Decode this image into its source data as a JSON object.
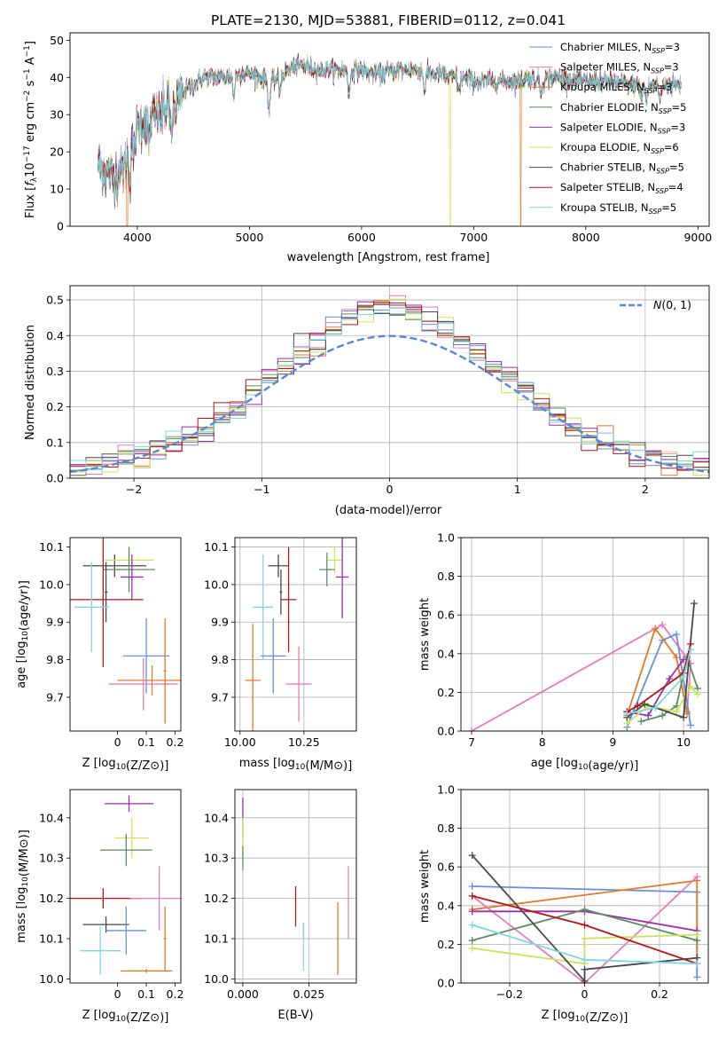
{
  "title": "PLATE=2130, MJD=53881, FIBERID=0112, z=0.041",
  "colors": {
    "Chabrier MILES": "#6a8fdb",
    "Salpeter MILES": "#e87dbb",
    "Kroupa MILES": "#e07b28",
    "Chabrier ELODIE": "#5e8c63",
    "Salpeter ELODIE": "#9b2fae",
    "Kroupa ELODIE": "#c8e65a",
    "Chabrier STELIB": "#4a4a4a",
    "Salpeter STELIB": "#b01818",
    "Kroupa STELIB": "#7fd8e0",
    "gauss": "#5b86d9"
  },
  "legend_models": [
    {
      "key": "Chabrier MILES",
      "imf": "Chabrier MILES, N",
      "n": "3"
    },
    {
      "key": "Salpeter MILES",
      "imf": "Salpeter MILES, N",
      "n": "3"
    },
    {
      "key": "Kroupa MILES",
      "imf": "Kroupa MILES, N",
      "n": "3"
    },
    {
      "key": "Chabrier ELODIE",
      "imf": "Chabrier ELODIE, N",
      "n": "5"
    },
    {
      "key": "Salpeter ELODIE",
      "imf": "Salpeter ELODIE, N",
      "n": "3"
    },
    {
      "key": "Kroupa ELODIE",
      "imf": "Kroupa ELODIE, N",
      "n": "6"
    },
    {
      "key": "Chabrier STELIB",
      "imf": "Chabrier STELIB, N",
      "n": "5"
    },
    {
      "key": "Salpeter STELIB",
      "imf": "Salpeter STELIB, N",
      "n": "4"
    },
    {
      "key": "Kroupa STELIB",
      "imf": "Kroupa STELIB, N",
      "n": "5"
    }
  ],
  "legend_ssp_subscript": "SSP",
  "chart_data": [
    {
      "id": "spectrum",
      "type": "line",
      "xlabel": "wavelength [Angstrom, rest frame]",
      "ylabel": "Flux [f_λ 10^-17 erg cm^-2 s^-1 A^-1]",
      "xlim": [
        3400,
        9100
      ],
      "ylim": [
        0,
        52
      ],
      "xticks": [
        4000,
        5000,
        6000,
        7000,
        8000,
        9000
      ],
      "yticks": [
        0,
        10,
        20,
        30,
        40,
        50
      ],
      "grid": false,
      "legend": "top-right",
      "continuum": [
        [
          3650,
          17
        ],
        [
          3700,
          15
        ],
        [
          3800,
          13
        ],
        [
          3900,
          17
        ],
        [
          3950,
          24
        ],
        [
          4000,
          27
        ],
        [
          4100,
          29
        ],
        [
          4200,
          30
        ],
        [
          4300,
          33
        ],
        [
          4400,
          36
        ],
        [
          4500,
          38
        ],
        [
          4600,
          40
        ],
        [
          4700,
          40
        ],
        [
          4800,
          40
        ],
        [
          4900,
          41
        ],
        [
          5000,
          41
        ],
        [
          5100,
          40
        ],
        [
          5200,
          39
        ],
        [
          5300,
          41
        ],
        [
          5400,
          43
        ],
        [
          5500,
          43
        ],
        [
          5600,
          42
        ],
        [
          5700,
          42
        ],
        [
          5800,
          42
        ],
        [
          5900,
          42
        ],
        [
          6000,
          42
        ],
        [
          6100,
          41
        ],
        [
          6200,
          41
        ],
        [
          6300,
          42
        ],
        [
          6400,
          42
        ],
        [
          6500,
          42
        ],
        [
          6600,
          41
        ],
        [
          6700,
          41
        ],
        [
          6800,
          40
        ],
        [
          6900,
          40
        ],
        [
          7000,
          39
        ],
        [
          7100,
          39
        ],
        [
          7200,
          39
        ],
        [
          7300,
          39
        ],
        [
          7400,
          39
        ],
        [
          7500,
          40
        ],
        [
          7600,
          39
        ],
        [
          7700,
          40
        ],
        [
          7800,
          40
        ],
        [
          7900,
          39
        ],
        [
          8000,
          39
        ],
        [
          8200,
          39
        ],
        [
          8400,
          38
        ],
        [
          8600,
          38
        ],
        [
          8800,
          38
        ]
      ],
      "absorption_features": [
        [
          3934,
          8
        ],
        [
          3969,
          6
        ],
        [
          4102,
          6
        ],
        [
          4304,
          8
        ],
        [
          4341,
          5
        ],
        [
          4861,
          6
        ],
        [
          5175,
          8
        ],
        [
          5270,
          4
        ],
        [
          5890,
          7
        ],
        [
          6563,
          5
        ],
        [
          6870,
          4
        ],
        [
          7600,
          3
        ],
        [
          8498,
          4
        ],
        [
          8542,
          5
        ],
        [
          8662,
          4
        ]
      ],
      "dropouts": [
        {
          "model": "Kroupa MILES",
          "x": 3910
        },
        {
          "model": "Kroupa ELODIE",
          "x": 6790
        },
        {
          "model": "Kroupa MILES",
          "x": 7420
        }
      ],
      "series": [
        "Chabrier MILES",
        "Salpeter MILES",
        "Kroupa MILES",
        "Chabrier ELODIE",
        "Salpeter ELODIE",
        "Kroupa ELODIE",
        "Chabrier STELIB",
        "Salpeter STELIB",
        "Kroupa STELIB"
      ]
    },
    {
      "id": "residuals",
      "type": "bar",
      "xlabel": "(data-model)/error",
      "ylabel": "Normed distribution",
      "xlim": [
        -2.5,
        2.5
      ],
      "ylim": [
        0,
        0.54
      ],
      "xticks": [
        -2,
        -1,
        0,
        1,
        2
      ],
      "yticks": [
        0.0,
        0.1,
        0.2,
        0.3,
        0.4,
        0.5
      ],
      "grid": true,
      "legend": "top-right",
      "gauss_label": "N(0,1)",
      "bins": 40,
      "series": [
        "Chabrier MILES",
        "Salpeter MILES",
        "Kroupa MILES",
        "Chabrier ELODIE",
        "Salpeter ELODIE",
        "Kroupa ELODIE",
        "Chabrier STELIB",
        "Salpeter STELIB",
        "Kroupa STELIB"
      ]
    },
    {
      "id": "age_vs_Z",
      "type": "scatter",
      "xlabel": "Z [log10(Z/Z⊙)]",
      "ylabel": "age [log10(age/yr)]",
      "xlim": [
        -0.165,
        0.22
      ],
      "ylim": [
        9.61,
        10.125
      ],
      "xticks": [
        0.0,
        0.1,
        0.2
      ],
      "yticks": [
        9.7,
        9.8,
        9.9,
        10.0,
        10.1
      ],
      "grid": false,
      "points": [
        {
          "model": "Chabrier STELIB",
          "x": -0.01,
          "y": 10.05,
          "xerr": 0.11,
          "yerr": 0.03
        },
        {
          "model": "Kroupa ELODIE",
          "x": 0.04,
          "y": 10.065,
          "xerr": 0.085,
          "yerr": 0.03
        },
        {
          "model": "Chabrier ELODIE",
          "x": 0.04,
          "y": 10.04,
          "xerr": 0.09,
          "yerr": 0.06
        },
        {
          "model": "Salpeter ELODIE",
          "x": 0.05,
          "y": 10.02,
          "xerr": 0.04,
          "yerr": 0.06
        },
        {
          "model": "Salpeter STELIB",
          "x": -0.05,
          "y": 9.96,
          "xerr": 0.14,
          "yerr": 0.18
        },
        {
          "model": "Chabrier STELIB",
          "x": -0.04,
          "y": 9.98,
          "xerr": 0.005,
          "yerr": 0.08
        },
        {
          "model": "Kroupa STELIB",
          "x": -0.09,
          "y": 9.94,
          "xerr": 0.06,
          "yerr": 0.12
        },
        {
          "model": "Chabrier MILES",
          "x": 0.1,
          "y": 9.81,
          "xerr": 0.08,
          "yerr": 0.1
        },
        {
          "model": "Kroupa MILES",
          "x": 0.12,
          "y": 9.745,
          "xerr": 0.12,
          "yerr": 0.04
        },
        {
          "model": "Salpeter MILES",
          "x": 0.09,
          "y": 9.735,
          "xerr": 0.12,
          "yerr": 0.07
        },
        {
          "model": "Kroupa MILES",
          "x": 0.165,
          "y": 9.77,
          "xerr": 0.005,
          "yerr": 0.14
        }
      ]
    },
    {
      "id": "age_vs_mass",
      "type": "scatter",
      "xlabel": "mass [log10(M/M⊙)]",
      "ylabel": "",
      "xlim": [
        9.98,
        10.455
      ],
      "ylim": [
        9.61,
        10.125
      ],
      "xticks": [
        10.0,
        10.25
      ],
      "xticklabels": [
        "10.00",
        "10.25"
      ],
      "yticks": [
        9.7,
        9.8,
        9.9,
        10.0,
        10.1
      ],
      "grid": true,
      "points": [
        {
          "model": "Chabrier STELIB",
          "x": 10.15,
          "y": 10.05,
          "xerr": 0.04,
          "yerr": 0.03
        },
        {
          "model": "Kroupa ELODIE",
          "x": 10.37,
          "y": 10.065,
          "xerr": 0.03,
          "yerr": 0.035
        },
        {
          "model": "Chabrier ELODIE",
          "x": 10.34,
          "y": 10.04,
          "xerr": 0.03,
          "yerr": 0.045
        },
        {
          "model": "Salpeter ELODIE",
          "x": 10.4,
          "y": 10.02,
          "xerr": 0.025,
          "yerr": 0.11
        },
        {
          "model": "Salpeter STELIB",
          "x": 10.19,
          "y": 9.96,
          "xerr": 0.03,
          "yerr": 0.14
        },
        {
          "model": "Chabrier STELIB",
          "x": 10.16,
          "y": 9.98,
          "xerr": 0.005,
          "yerr": 0.06
        },
        {
          "model": "Kroupa STELIB",
          "x": 10.09,
          "y": 9.94,
          "xerr": 0.04,
          "yerr": 0.14
        },
        {
          "model": "Chabrier MILES",
          "x": 10.13,
          "y": 9.81,
          "xerr": 0.05,
          "yerr": 0.1
        },
        {
          "model": "Kroupa MILES",
          "x": 10.05,
          "y": 9.745,
          "xerr": 0.03,
          "yerr": 0.15
        },
        {
          "model": "Salpeter MILES",
          "x": 10.23,
          "y": 9.735,
          "xerr": 0.05,
          "yerr": 0.1
        }
      ]
    },
    {
      "id": "weight_vs_age",
      "type": "line",
      "xlabel": "age [log10(age/yr)]",
      "ylabel": "mass weight",
      "xlim": [
        6.85,
        10.35
      ],
      "ylim": [
        0,
        1.0
      ],
      "xticks": [
        7,
        8,
        9,
        10
      ],
      "yticks": [
        0.0,
        0.2,
        0.4,
        0.6,
        0.8,
        1.0
      ],
      "grid": true,
      "series": [
        {
          "model": "Salpeter MILES",
          "x": [
            7.0,
            9.7,
            10.1,
            10.05
          ],
          "y": [
            0.0,
            0.55,
            0.35,
            0.1
          ]
        },
        {
          "model": "Chabrier MILES",
          "x": [
            9.2,
            9.7,
            9.9,
            10.1
          ],
          "y": [
            0.02,
            0.47,
            0.5,
            0.03
          ]
        },
        {
          "model": "Kroupa MILES",
          "x": [
            9.2,
            9.6,
            9.9,
            10.05
          ],
          "y": [
            0.08,
            0.53,
            0.38,
            0.09
          ]
        },
        {
          "model": "Chabrier ELODIE",
          "x": [
            9.4,
            9.7,
            9.9,
            10.05,
            10.2
          ],
          "y": [
            0.05,
            0.08,
            0.13,
            0.38,
            0.22
          ]
        },
        {
          "model": "Salpeter ELODIE",
          "x": [
            9.2,
            9.5,
            9.8,
            10.0
          ],
          "y": [
            0.1,
            0.08,
            0.27,
            0.37
          ]
        },
        {
          "model": "Kroupa ELODIE",
          "x": [
            9.2,
            9.5,
            9.9,
            10.1,
            10.2
          ],
          "y": [
            0.04,
            0.13,
            0.1,
            0.23,
            0.19
          ]
        },
        {
          "model": "Chabrier STELIB",
          "x": [
            9.2,
            9.45,
            10.0,
            10.15
          ],
          "y": [
            0.07,
            0.14,
            0.07,
            0.66
          ]
        },
        {
          "model": "Salpeter STELIB",
          "x": [
            9.2,
            9.35,
            10.0,
            10.1
          ],
          "y": [
            0.1,
            0.13,
            0.3,
            0.45
          ]
        },
        {
          "model": "Kroupa STELIB",
          "x": [
            9.2,
            9.6,
            10.0,
            10.1
          ],
          "y": [
            0.09,
            0.12,
            0.28,
            0.42
          ]
        }
      ]
    },
    {
      "id": "mass_vs_Z",
      "type": "scatter",
      "xlabel": "Z [log10(Z/Z⊙)]",
      "ylabel": "mass [log10(M/M⊙)]",
      "xlim": [
        -0.165,
        0.22
      ],
      "ylim": [
        9.99,
        10.47
      ],
      "xticks": [
        0.0,
        0.1,
        0.2
      ],
      "yticks": [
        10.0,
        10.1,
        10.2,
        10.3,
        10.4
      ],
      "grid": false,
      "points": [
        {
          "model": "Salpeter ELODIE",
          "x": 0.04,
          "y": 10.435,
          "xerr": 0.085,
          "yerr": 0.02
        },
        {
          "model": "Kroupa ELODIE",
          "x": 0.05,
          "y": 10.35,
          "xerr": 0.06,
          "yerr": 0.05
        },
        {
          "model": "Chabrier ELODIE",
          "x": 0.03,
          "y": 10.32,
          "xerr": 0.09,
          "yerr": 0.04
        },
        {
          "model": "Salpeter STELIB",
          "x": -0.05,
          "y": 10.2,
          "xerr": 0.14,
          "yerr": 0.025
        },
        {
          "model": "Salpeter MILES",
          "x": 0.145,
          "y": 10.2,
          "xerr": 0.1,
          "yerr": 0.08
        },
        {
          "model": "Chabrier STELIB",
          "x": -0.04,
          "y": 10.135,
          "xerr": 0.08,
          "yerr": 0.02
        },
        {
          "model": "Chabrier MILES",
          "x": 0.03,
          "y": 10.12,
          "xerr": 0.07,
          "yerr": 0.06
        },
        {
          "model": "Kroupa STELIB",
          "x": -0.06,
          "y": 10.07,
          "xerr": 0.07,
          "yerr": 0.06
        },
        {
          "model": "Kroupa MILES",
          "x": 0.1,
          "y": 10.02,
          "xerr": 0.09,
          "yerr": 0.005
        },
        {
          "model": "Kroupa MILES",
          "x": 0.165,
          "y": 10.1,
          "xerr": 0.005,
          "yerr": 0.08
        }
      ]
    },
    {
      "id": "mass_vs_ebv",
      "type": "scatter",
      "xlabel": "E(B-V)",
      "ylabel": "",
      "xlim": [
        -0.003,
        0.043
      ],
      "ylim": [
        9.99,
        10.47
      ],
      "xticks": [
        0.0,
        0.025
      ],
      "xticklabels": [
        "0.000",
        "0.025"
      ],
      "yticks": [
        10.0,
        10.1,
        10.2,
        10.3,
        10.4
      ],
      "grid": true,
      "points": [
        {
          "model": "Salpeter ELODIE",
          "x": 0.0,
          "y": 10.4,
          "yerr": 0.05
        },
        {
          "model": "Kroupa ELODIE",
          "x": 0.0,
          "y": 10.35,
          "yerr": 0.05
        },
        {
          "model": "Chabrier ELODIE",
          "x": 0.0,
          "y": 10.3,
          "yerr": 0.03
        },
        {
          "model": "Salpeter STELIB",
          "x": 0.02,
          "y": 10.18,
          "yerr": 0.05
        },
        {
          "model": "Chabrier MILES",
          "x": 0.023,
          "y": 10.12,
          "yerr": 0.02
        },
        {
          "model": "Kroupa STELIB",
          "x": 0.023,
          "y": 10.08,
          "yerr": 0.06
        },
        {
          "model": "Kroupa MILES",
          "x": 0.036,
          "y": 10.1,
          "yerr": 0.09
        },
        {
          "model": "Salpeter MILES",
          "x": 0.04,
          "y": 10.19,
          "yerr": 0.09
        }
      ]
    },
    {
      "id": "weight_vs_Z",
      "type": "line",
      "xlabel": "Z [log10(Z/Z⊙)]",
      "ylabel": "mass weight",
      "xlim": [
        -0.33,
        0.33
      ],
      "ylim": [
        0,
        1.0
      ],
      "xticks": [
        -0.2,
        0.0,
        0.2
      ],
      "yticks": [
        0.0,
        0.2,
        0.4,
        0.6,
        0.8,
        1.0
      ],
      "grid": true,
      "series": [
        {
          "model": "Chabrier MILES",
          "x": [
            -0.3,
            0.3,
            0.3
          ],
          "y": [
            0.5,
            0.47,
            0.03
          ]
        },
        {
          "model": "Kroupa MILES",
          "x": [
            -0.3,
            0.3,
            0.3
          ],
          "y": [
            0.38,
            0.53,
            0.1
          ]
        },
        {
          "model": "Salpeter MILES",
          "x": [
            -0.3,
            0.0,
            0.3
          ],
          "y": [
            0.45,
            0.0,
            0.55
          ]
        },
        {
          "model": "Salpeter ELODIE",
          "x": [
            -0.3,
            0.0,
            0.3
          ],
          "y": [
            0.37,
            0.37,
            0.27
          ]
        },
        {
          "model": "Chabrier ELODIE",
          "x": [
            -0.3,
            0.0,
            0.3
          ],
          "y": [
            0.22,
            0.38,
            0.22
          ]
        },
        {
          "model": "Kroupa ELODIE",
          "x": [
            -0.3,
            0.0,
            0.0,
            0.3
          ],
          "y": [
            0.18,
            0.1,
            0.23,
            0.25
          ]
        },
        {
          "model": "Chabrier STELIB",
          "x": [
            -0.3,
            0.0,
            0.0,
            0.3
          ],
          "y": [
            0.66,
            0.01,
            0.07,
            0.13
          ]
        },
        {
          "model": "Salpeter STELIB",
          "x": [
            -0.3,
            0.0,
            0.3
          ],
          "y": [
            0.45,
            0.3,
            0.1
          ]
        },
        {
          "model": "Kroupa STELIB",
          "x": [
            -0.3,
            0.0,
            0.3
          ],
          "y": [
            0.3,
            0.12,
            0.1
          ]
        }
      ]
    }
  ]
}
